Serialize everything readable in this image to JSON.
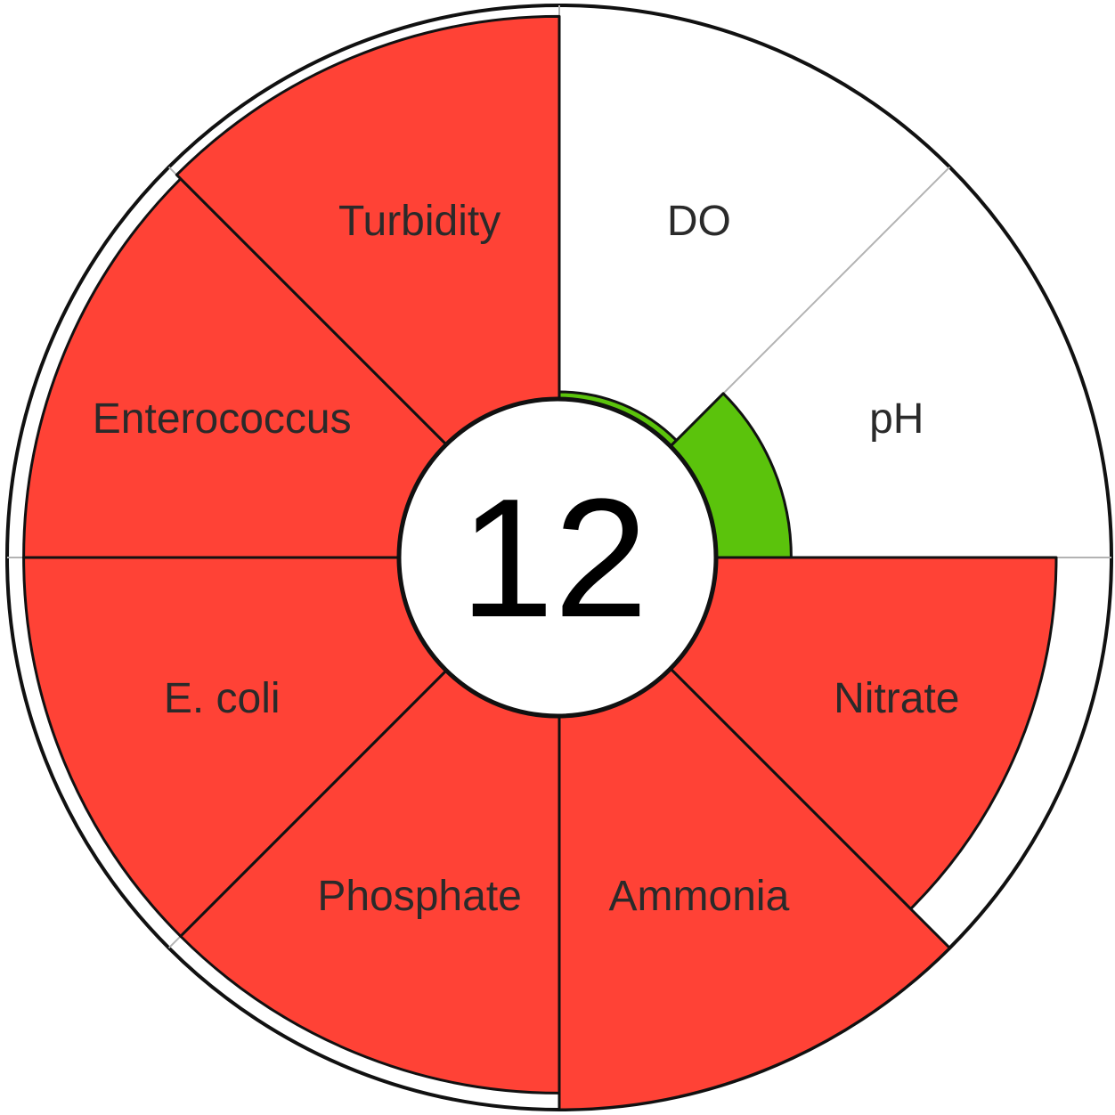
{
  "chart_data": {
    "type": "polar-area",
    "title": "",
    "score": "12",
    "max_value": 100,
    "categories": [
      "DO",
      "pH",
      "Nitrate",
      "Ammonia",
      "Phosphate",
      "E. coli",
      "Enterococcus",
      "Turbidity"
    ],
    "values": [
      30,
      42,
      90,
      100,
      97,
      97,
      97,
      98
    ],
    "segment_colors": [
      "#5bc30c",
      "#5bc30c",
      "#ff4236",
      "#ff4236",
      "#ff4236",
      "#ff4236",
      "#ff4236",
      "#ff4236"
    ],
    "legend": "none",
    "grid": false
  }
}
